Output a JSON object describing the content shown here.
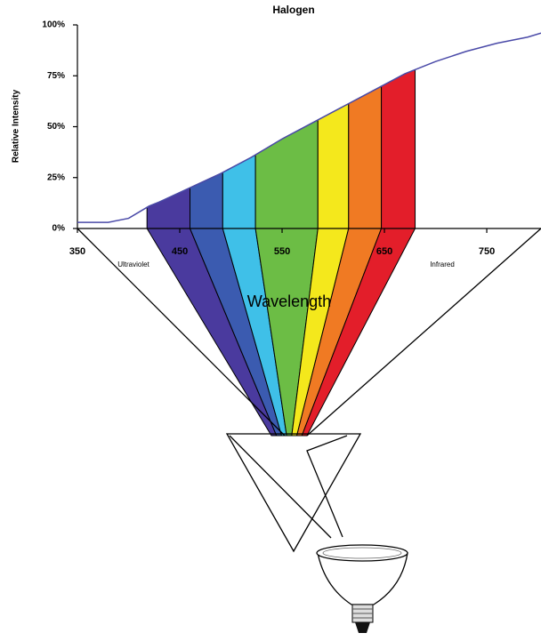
{
  "chart_data": {
    "type": "line",
    "title": "Halogen",
    "y_label": "Relative Intensity",
    "x_label": "Wavelength",
    "annotations": [
      "Ultraviolet",
      "Infrared"
    ],
    "x": [
      350,
      380,
      400,
      410,
      420,
      430,
      460,
      490,
      520,
      550,
      580,
      610,
      640,
      670,
      700,
      730,
      760,
      790,
      803
    ],
    "values": [
      3,
      3,
      5,
      8,
      11,
      13,
      20,
      27,
      35,
      44,
      52,
      60,
      68,
      76,
      82,
      87,
      91,
      94,
      96
    ],
    "color": "#4a4aa8",
    "xlim": [
      350,
      803
    ],
    "ylim": [
      0,
      100
    ],
    "xticks": [
      350,
      450,
      550,
      650,
      750
    ],
    "yticks": [
      {
        "value": 0,
        "label": "0%"
      },
      {
        "value": 25,
        "label": "25%"
      },
      {
        "value": 50,
        "label": "50%"
      },
      {
        "value": 75,
        "label": "75%"
      },
      {
        "value": 100,
        "label": "100%"
      }
    ],
    "bands": [
      {
        "x": [
          418,
          460
        ],
        "color": "#4a3a9e"
      },
      {
        "x": [
          460,
          492
        ],
        "color": "#3b5bb0"
      },
      {
        "x": [
          492,
          524
        ],
        "color": "#3fc0e8"
      },
      {
        "x": [
          524,
          585
        ],
        "color": "#6cbd45"
      },
      {
        "x": [
          585,
          615
        ],
        "color": "#f4e81c"
      },
      {
        "x": [
          615,
          647
        ],
        "color": "#f07a23"
      },
      {
        "x": [
          647,
          680
        ],
        "color": "#e31e2a"
      }
    ]
  }
}
